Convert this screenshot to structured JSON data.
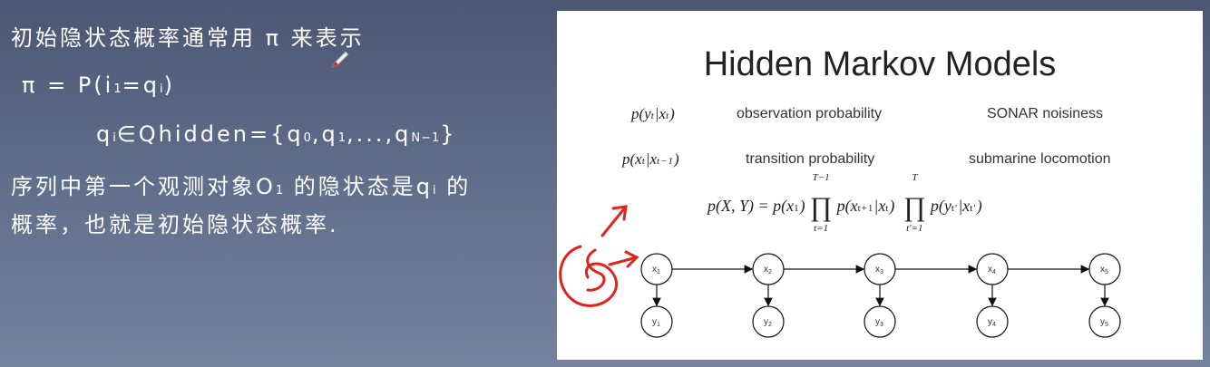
{
  "left": {
    "line1": "初始隐状态概率通常用 π 来表示",
    "line2_a": "π = P(i",
    "line2_sub1": "1",
    "line2_b": "=q",
    "line2_sub2": "i",
    "line2_c": ")",
    "line3_a": "q",
    "line3_sub1": "i",
    "line3_b": "∈Qhidden={q",
    "line3_sub2": "0",
    "line3_c": ",q",
    "line3_sub3": "1",
    "line3_d": ",...,q",
    "line3_sub4": "N−1",
    "line3_e": "}",
    "line4_a": "序列中第一个观测对象O",
    "line4_sub1": "1",
    "line4_b": " 的隐状态是q",
    "line4_sub2": "i",
    "line4_c": " 的",
    "line5": "概率，也就是初始隐状态概率."
  },
  "slide": {
    "title": "Hidden Markov Models",
    "rows": [
      {
        "term": "p(y|x)",
        "term_a": "p(y",
        "term_sub1": "t",
        "term_b": "|x",
        "term_sub2": "t",
        "term_c": ")",
        "description": "observation probability",
        "example": "SONAR noisiness"
      },
      {
        "term_a": "p(x",
        "term_sub1": "t",
        "term_b": "|x",
        "term_sub2": "t−1",
        "term_c": ")",
        "description": "transition probability",
        "example": "submarine locomotion"
      }
    ],
    "joint": {
      "lhs": "p(X, Y) = p(x",
      "lhs_sub": "1",
      "lhs_end": ")",
      "prod1_upper": "T−1",
      "prod1_lower": "t=1",
      "term1_a": "p(x",
      "term1_sub1": "t+1",
      "term1_b": "|x",
      "term1_sub2": "t",
      "term1_c": ")",
      "prod2_upper": "T",
      "prod2_lower": "t′=1",
      "term2_a": "p(y",
      "term2_sub1": "t′",
      "term2_b": "|x",
      "term2_sub2": "t′",
      "term2_c": ")"
    },
    "hidden_nodes": [
      {
        "letter": "x",
        "index": "1"
      },
      {
        "letter": "x",
        "index": "2"
      },
      {
        "letter": "x",
        "index": "3"
      },
      {
        "letter": "x",
        "index": "4"
      },
      {
        "letter": "x",
        "index": "5"
      }
    ],
    "observed_nodes": [
      {
        "letter": "y",
        "index": "1"
      },
      {
        "letter": "y",
        "index": "2"
      },
      {
        "letter": "y",
        "index": "3"
      },
      {
        "letter": "y",
        "index": "4"
      },
      {
        "letter": "y",
        "index": "5"
      }
    ]
  },
  "colors": {
    "annotation": "#e0241b",
    "background_top": "#4b5673",
    "background_bottom": "#76839f",
    "slide_bg": "#ffffff"
  },
  "icons": {
    "cursor": "pen-cursor-icon"
  }
}
